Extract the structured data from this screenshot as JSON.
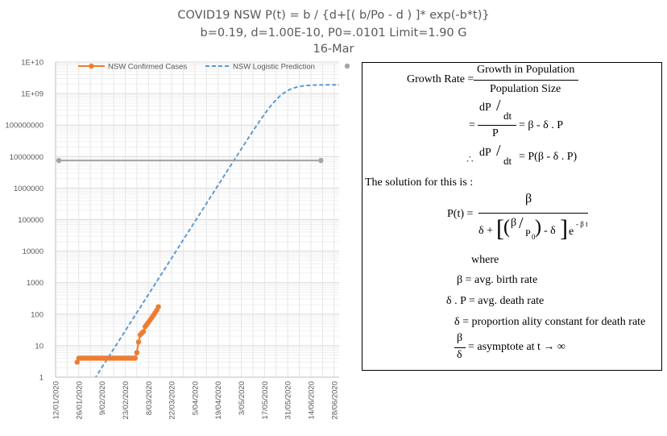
{
  "title": {
    "line1": "COVID19 NSW P(t) = b / {d+[( b/Po - d ) ]* exp(-b*t)}",
    "line2": "b=0.19, d=1.00E-10, P0=.0101 Limit=1.90 G",
    "line3": "16-Mar"
  },
  "colors": {
    "confirmed": "#ED7D31",
    "prediction": "#5B9BD5",
    "reference": "#A5A5A5",
    "grid": "#E6E6E6"
  },
  "chart_data": {
    "type": "line",
    "y_scale": "log",
    "ylim": [
      1,
      10000000000
    ],
    "xlim": [
      "2020-01-12",
      "2020-07-01"
    ],
    "y_tick_labels": [
      "1",
      "10",
      "100",
      "1000",
      "10000",
      "100000",
      "1000000",
      "10000000",
      "100000000",
      "1E+09",
      "1E+10"
    ],
    "x_tick_labels": [
      "12/01/2020",
      "26/01/2020",
      "9/02/2020",
      "23/02/2020",
      "8/03/2020",
      "22/03/2020",
      "5/04/2020",
      "19/04/2020",
      "3/05/2020",
      "17/05/2020",
      "31/05/2020",
      "14/06/2020",
      "28/06/2020"
    ],
    "x_tick_dates": [
      "2020-01-12",
      "2020-01-26",
      "2020-02-09",
      "2020-02-23",
      "2020-03-08",
      "2020-03-22",
      "2020-04-05",
      "2020-04-19",
      "2020-05-03",
      "2020-05-17",
      "2020-05-31",
      "2020-06-14",
      "2020-06-28"
    ],
    "legend_position": "top",
    "grid": true,
    "series": [
      {
        "name": "NSW Confirmed Cases",
        "style": "line-markers",
        "color": "#ED7D31",
        "points": [
          [
            "2020-01-25",
            3
          ],
          [
            "2020-01-26",
            4
          ],
          [
            "2020-01-27",
            4
          ],
          [
            "2020-01-28",
            4
          ],
          [
            "2020-01-29",
            4
          ],
          [
            "2020-01-30",
            4
          ],
          [
            "2020-01-31",
            4
          ],
          [
            "2020-02-01",
            4
          ],
          [
            "2020-02-02",
            4
          ],
          [
            "2020-02-03",
            4
          ],
          [
            "2020-02-04",
            4
          ],
          [
            "2020-02-05",
            4
          ],
          [
            "2020-02-06",
            4
          ],
          [
            "2020-02-07",
            4
          ],
          [
            "2020-02-08",
            4
          ],
          [
            "2020-02-09",
            4
          ],
          [
            "2020-02-10",
            4
          ],
          [
            "2020-02-11",
            4
          ],
          [
            "2020-02-12",
            4
          ],
          [
            "2020-02-13",
            4
          ],
          [
            "2020-02-14",
            4
          ],
          [
            "2020-02-15",
            4
          ],
          [
            "2020-02-16",
            4
          ],
          [
            "2020-02-17",
            4
          ],
          [
            "2020-02-18",
            4
          ],
          [
            "2020-02-19",
            4
          ],
          [
            "2020-02-20",
            4
          ],
          [
            "2020-02-21",
            4
          ],
          [
            "2020-02-22",
            4
          ],
          [
            "2020-02-23",
            4
          ],
          [
            "2020-02-24",
            4
          ],
          [
            "2020-02-25",
            4
          ],
          [
            "2020-02-26",
            4
          ],
          [
            "2020-02-27",
            4
          ],
          [
            "2020-02-28",
            4
          ],
          [
            "2020-02-29",
            4
          ],
          [
            "2020-03-01",
            6
          ],
          [
            "2020-03-02",
            13
          ],
          [
            "2020-03-03",
            22
          ],
          [
            "2020-03-04",
            25
          ],
          [
            "2020-03-05",
            28
          ],
          [
            "2020-03-06",
            40
          ],
          [
            "2020-03-07",
            47
          ],
          [
            "2020-03-08",
            55
          ],
          [
            "2020-03-09",
            65
          ],
          [
            "2020-03-10",
            77
          ],
          [
            "2020-03-11",
            92
          ],
          [
            "2020-03-12",
            110
          ],
          [
            "2020-03-13",
            134
          ],
          [
            "2020-03-14",
            171
          ]
        ]
      },
      {
        "name": "NSW Logistic Prediction",
        "style": "dashed",
        "color": "#5B9BD5",
        "model": {
          "b": 0.19,
          "d": 1e-10,
          "P0": 0.0101,
          "t0": "2020-01-12"
        }
      },
      {
        "style": "line-markers",
        "color": "#A5A5A5",
        "points": [
          [
            "2020-01-14",
            7500000
          ],
          [
            "2020-06-20",
            7500000
          ]
        ]
      }
    ]
  },
  "equations": {
    "growth_rate_label": "Growth Rate =",
    "growth_num": "Growth in Population",
    "growth_den": "Population Size",
    "eq_sign": "=",
    "dP": "dP",
    "slash": "/",
    "dt": "dt",
    "P": "P",
    "rhs1": "= β - δ . P",
    "therefore": "∴",
    "rhs2": "= P(β - δ . P)",
    "solution_text": "The solution for this is :",
    "pt": "P(t) =",
    "beta": "β",
    "sol_den_left": "δ +",
    "p0": "P",
    "p0_sub": "0",
    "minus_delta": "- δ",
    "e": "e",
    "exp": "- β t",
    "where": "where",
    "def1": "β = avg. birth rate",
    "def2": "δ . P = avg. death rate",
    "def3": "δ = proportion ality constant  for death rate",
    "delta": "δ",
    "def4": "= asymptote  at t → ∞"
  }
}
